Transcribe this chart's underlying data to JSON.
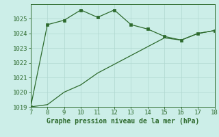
{
  "line1_x": [
    7,
    8,
    9,
    10,
    11,
    12,
    13,
    14,
    15,
    16,
    17,
    18
  ],
  "line1_y": [
    1019.0,
    1024.6,
    1024.9,
    1025.6,
    1025.1,
    1025.6,
    1024.6,
    1024.3,
    1023.8,
    1023.55,
    1024.0,
    1024.2
  ],
  "line2_x": [
    7,
    8,
    9,
    10,
    11,
    12,
    13,
    14,
    15,
    16,
    17,
    18
  ],
  "line2_y": [
    1019.0,
    1019.15,
    1020.0,
    1020.5,
    1021.3,
    1021.9,
    1022.5,
    1023.1,
    1023.7,
    1023.55,
    1024.0,
    1024.2
  ],
  "line_color": "#2d6a2d",
  "background_color": "#cceee8",
  "grid_color": "#b0d8d0",
  "xlabel": "Graphe pression niveau de la mer (hPa)",
  "xlim": [
    7,
    18
  ],
  "ylim": [
    1019,
    1026
  ],
  "yticks": [
    1019,
    1020,
    1021,
    1022,
    1023,
    1024,
    1025
  ],
  "xticks": [
    7,
    8,
    9,
    10,
    11,
    12,
    13,
    14,
    15,
    16,
    17,
    18
  ],
  "xlabel_fontsize": 7.0,
  "tick_fontsize": 6.5
}
